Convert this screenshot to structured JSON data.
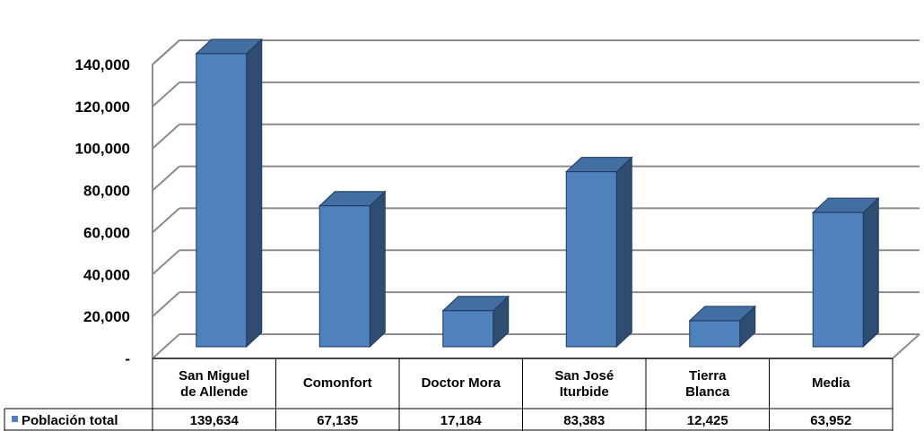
{
  "chart_data": {
    "type": "bar",
    "title": "",
    "xlabel": "",
    "ylabel": "",
    "ylim": [
      0,
      140000
    ],
    "yticks": [
      0,
      20000,
      40000,
      60000,
      80000,
      100000,
      120000,
      140000
    ],
    "ytick_labels": [
      "-",
      "20,000",
      "40,000",
      "60,000",
      "80,000",
      "100,000",
      "120,000",
      "140,000"
    ],
    "grid": true,
    "three_d": true,
    "legend_placement": "data-table",
    "categories": [
      [
        "San Miguel",
        "de Allende"
      ],
      [
        "Comonfort"
      ],
      [
        "Doctor Mora"
      ],
      [
        "San José",
        "Iturbide"
      ],
      [
        "Tierra",
        "Blanca"
      ],
      [
        "Media"
      ]
    ],
    "series": [
      {
        "name": "Población total",
        "color": "#4F81BD",
        "values": [
          139634,
          67135,
          17184,
          83383,
          12425,
          63952
        ],
        "value_labels": [
          "139,634",
          "67,135",
          "17,184",
          "83,383",
          "12,425",
          "63,952"
        ]
      }
    ]
  }
}
